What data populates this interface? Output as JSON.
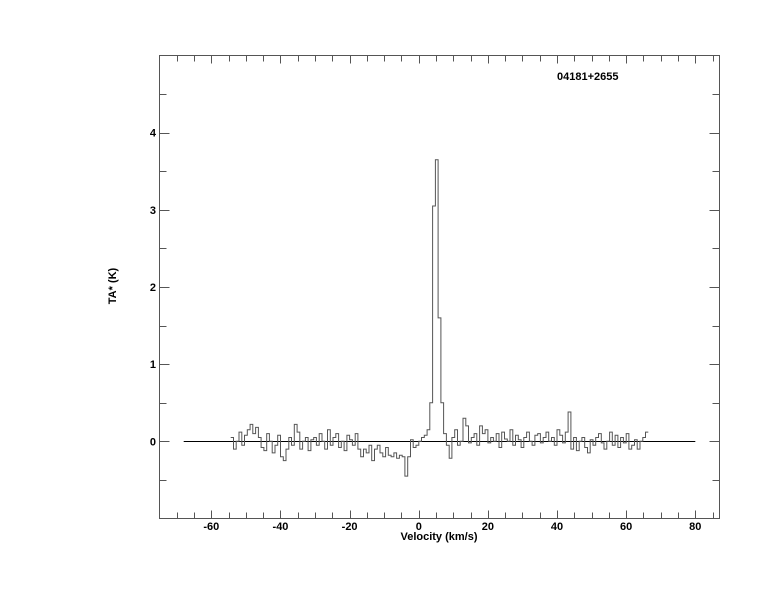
{
  "chart_data": {
    "type": "line",
    "style": "histogram-step",
    "title": "04181+2655",
    "xlabel": "Velocity (km/s)",
    "ylabel": "TA* (K)",
    "xlim": [
      -75,
      87
    ],
    "ylim": [
      -1,
      5
    ],
    "x_ticks": [
      -60,
      -40,
      -20,
      0,
      20,
      40,
      60,
      80
    ],
    "y_ticks": [
      0,
      1,
      2,
      3,
      4
    ],
    "x_tick_labels": [
      "-60",
      "-40",
      "-20",
      "0",
      "20",
      "40",
      "60",
      "80"
    ],
    "y_tick_labels": [
      "0",
      "1",
      "2",
      "3",
      "4"
    ],
    "baseline": {
      "y": 0,
      "x_range": [
        -68,
        80
      ]
    },
    "grid": false,
    "line_color": "#000000",
    "series": [
      {
        "x_start": -54,
        "x_step": 0.8,
        "values": [
          0.05,
          -0.1,
          0.0,
          0.12,
          -0.05,
          0.08,
          0.15,
          0.22,
          0.1,
          0.18,
          0.05,
          -0.08,
          -0.12,
          0.1,
          0.0,
          -0.15,
          -0.05,
          0.08,
          -0.2,
          -0.25,
          -0.1,
          0.05,
          -0.05,
          0.22,
          0.12,
          -0.1,
          0.0,
          0.05,
          -0.12,
          0.02,
          0.05,
          -0.05,
          0.1,
          0.0,
          -0.1,
          0.15,
          -0.05,
          0.05,
          0.1,
          -0.08,
          0.0,
          -0.12,
          0.08,
          0.02,
          -0.05,
          0.1,
          -0.1,
          -0.2,
          -0.1,
          -0.15,
          -0.05,
          -0.25,
          -0.1,
          -0.05,
          -0.15,
          -0.2,
          -0.08,
          -0.18,
          -0.2,
          -0.15,
          -0.22,
          -0.18,
          -0.2,
          -0.45,
          -0.2,
          0.02,
          -0.08,
          -0.05,
          0.0,
          0.05,
          0.08,
          0.15,
          0.5,
          3.05,
          3.65,
          1.6,
          0.5,
          0.1,
          -0.05,
          -0.22,
          0.05,
          0.15,
          -0.05,
          0.0,
          0.3,
          0.2,
          -0.02,
          0.05,
          0.1,
          -0.05,
          0.2,
          0.1,
          0.15,
          -0.02,
          0.05,
          0.0,
          0.1,
          -0.08,
          0.12,
          0.03,
          0.0,
          0.15,
          -0.05,
          0.08,
          0.02,
          -0.08,
          0.05,
          0.12,
          0.0,
          -0.05,
          0.08,
          0.1,
          -0.02,
          0.05,
          0.12,
          0.0,
          0.05,
          -0.05,
          0.15,
          0.08,
          -0.02,
          0.12,
          0.38,
          -0.1,
          0.05,
          -0.12,
          0.0,
          0.05,
          -0.08,
          -0.15,
          0.02,
          -0.05,
          0.05,
          0.1,
          -0.02,
          -0.1,
          0.0,
          0.12,
          -0.05,
          0.08,
          -0.08,
          0.05,
          -0.02,
          0.1,
          -0.1,
          -0.05,
          0.02,
          -0.1,
          0.0,
          0.05,
          0.12
        ]
      }
    ]
  }
}
